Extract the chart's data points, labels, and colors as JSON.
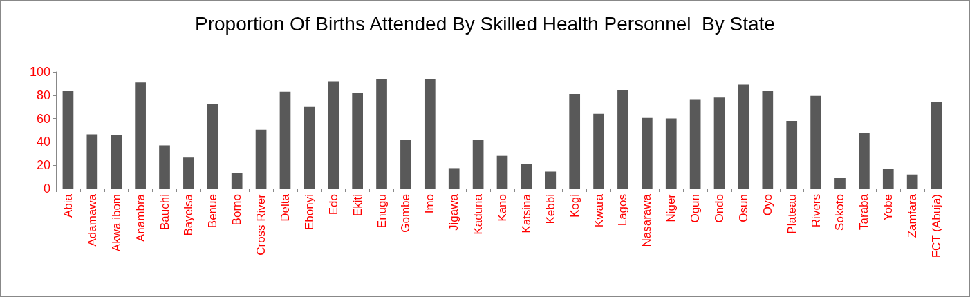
{
  "chart_data": {
    "type": "bar",
    "title": "Proportion Of Births Attended By Skilled Health Personnel  By State",
    "categories": [
      "Abia",
      "Adamawa",
      "Akwa ibom",
      "Anambra",
      "Bauchi",
      "Bayelsa",
      "Benue",
      "Borno",
      "Cross River",
      "Delta",
      "Ebonyi",
      "Edo",
      "Ekiti",
      "Enugu",
      "Gombe",
      "Imo",
      "Jigawa",
      "Kaduna",
      "Kano",
      "Katsina",
      "Kebbi",
      "Kogi",
      "Kwara",
      "Lagos",
      "Nasarawa",
      "Niger",
      "Ogun",
      "Ondo",
      "Osun",
      "Oyo",
      "Plateau",
      "Rivers",
      "Sokoto",
      "Taraba",
      "Yobe",
      "Zamfara",
      "FCT (Abuja)"
    ],
    "values": [
      83.5,
      46.5,
      46,
      91,
      37,
      26.5,
      72.5,
      13.5,
      50.5,
      83,
      70,
      92,
      82,
      93.5,
      41.5,
      94,
      17.5,
      42,
      28,
      21,
      14.5,
      81,
      64,
      84,
      60.5,
      60,
      76,
      78,
      89,
      83.5,
      58,
      79.5,
      9,
      48,
      17,
      12,
      74
    ],
    "color": "#595959",
    "ylim": [
      0,
      100
    ],
    "yticks": [
      0,
      20,
      40,
      60,
      80,
      100
    ],
    "grid": false
  }
}
